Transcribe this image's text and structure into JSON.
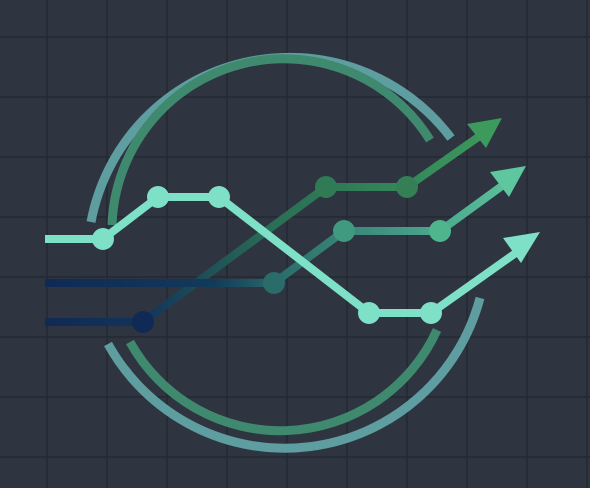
{
  "colors": {
    "background": "#2e3540",
    "grid": "#232a33",
    "outer_ring": "#5f9ea0",
    "inner_ring": "#3f8a6e",
    "line_light": "#7fe0c8",
    "line_mid": "#5ec79f",
    "line_dark": "#3c9a5c",
    "line_navy": "#0f2a55"
  },
  "logo": {
    "icon": "growth-chart-emblem-icon"
  }
}
